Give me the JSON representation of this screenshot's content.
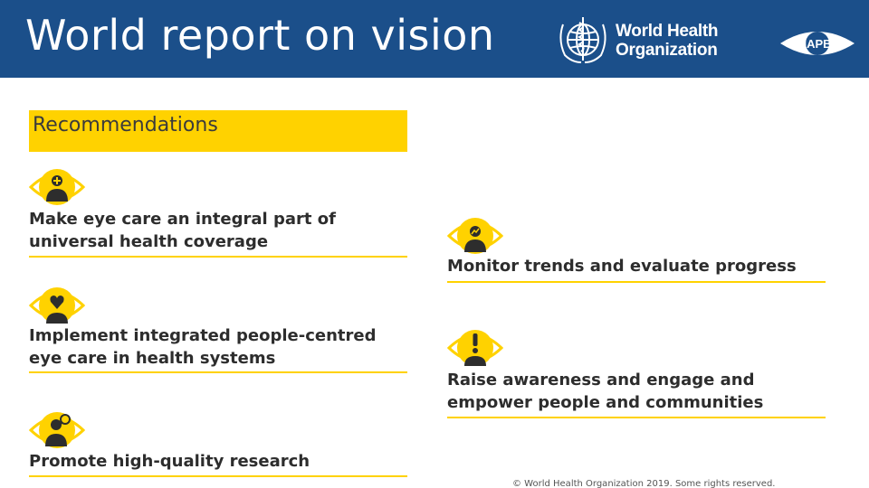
{
  "header": {
    "title": "World report on vision",
    "who_line1": "World Health",
    "who_line2": "Organization",
    "iapb_text": "IAPB"
  },
  "recommendations": {
    "heading": "Recommendations",
    "items": [
      {
        "icon": "eye-plus-person-icon",
        "line1": "Make eye care an integral part of",
        "line2": "universal health coverage"
      },
      {
        "icon": "eye-heart-person-icon",
        "line1": "Implement integrated people-centred",
        "line2": "eye care in health systems"
      },
      {
        "icon": "eye-magnifier-person-icon",
        "line1": "Promote high-quality research",
        "line2": ""
      },
      {
        "icon": "eye-chart-person-icon",
        "line1": "Monitor trends and evaluate progress",
        "line2": ""
      },
      {
        "icon": "eye-exclamation-person-icon",
        "line1": "Raise awareness and engage and",
        "line2": "empower people and communities"
      }
    ]
  },
  "footer": {
    "copyright": "© World Health Organization 2019. Some rights reserved."
  },
  "colors": {
    "header_bg": "#1b4f8a",
    "accent_yellow": "#ffd200"
  }
}
